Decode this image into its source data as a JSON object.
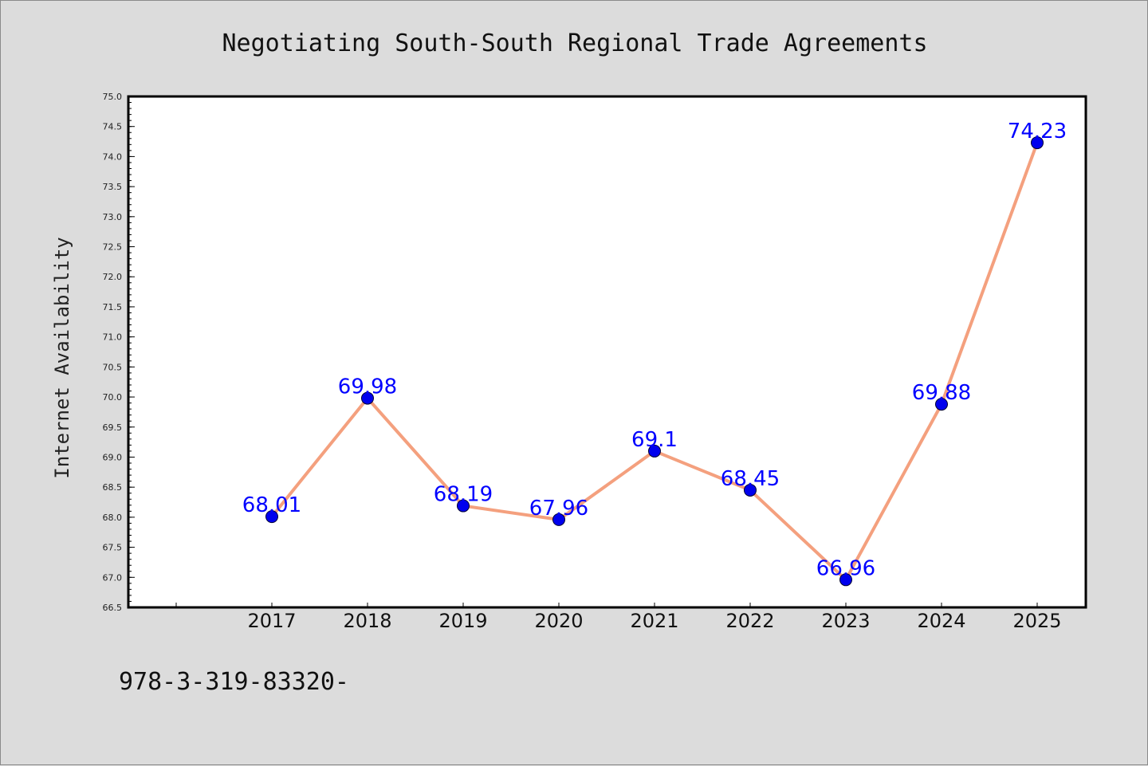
{
  "chart_data": {
    "type": "line",
    "title": "Negotiating South-South Regional Trade Agreements",
    "xlabel": "",
    "ylabel": "Internet Availability",
    "categories": [
      "2017",
      "2018",
      "2019",
      "2020",
      "2021",
      "2022",
      "2023",
      "2024",
      "2025"
    ],
    "values": [
      68.01,
      69.98,
      68.19,
      67.96,
      69.1,
      68.45,
      66.96,
      69.88,
      74.23
    ],
    "data_labels": [
      "68.01",
      "69.98",
      "68.19",
      "67.96",
      "69.1",
      "68.45",
      "66.96",
      "69.88",
      "74.23"
    ],
    "ylim": [
      66.5,
      75.0
    ],
    "yticks": [
      "66.5",
      "67.0",
      "67.5",
      "68.0",
      "68.5",
      "69.0",
      "69.5",
      "70.0",
      "70.5",
      "71.0",
      "71.5",
      "72.0",
      "72.5",
      "73.0",
      "73.5",
      "74.0",
      "74.5",
      "75.0"
    ],
    "grid": false,
    "legend": "none",
    "colors": {
      "line": "#f4a07e",
      "marker": "#0000ee",
      "label": "#0000ff",
      "plot_background": "#ffffff",
      "figure_background": "#dcdcdc"
    }
  },
  "footer": {
    "text": "978-3-319-83320-"
  }
}
